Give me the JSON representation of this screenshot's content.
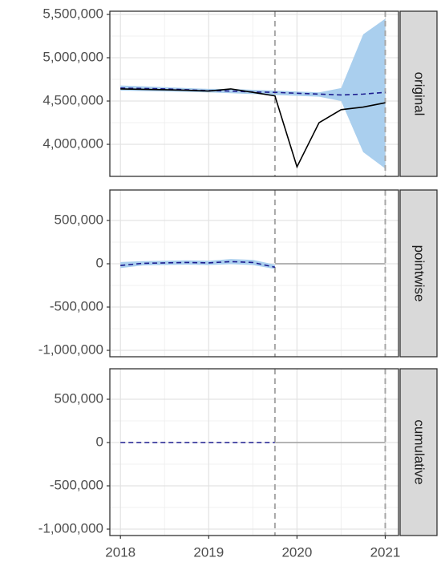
{
  "chart_data": [
    {
      "type": "line",
      "facet_label": "original",
      "x": [
        2018,
        2018.25,
        2018.5,
        2018.75,
        2019,
        2019.25,
        2019.5,
        2019.75,
        2020,
        2020.25,
        2020.5,
        2020.75,
        2021
      ],
      "xlim": [
        2017.88,
        2021.15
      ],
      "xticks": [
        2018,
        2019,
        2020,
        2021
      ],
      "ylim": [
        3630000,
        5537000
      ],
      "yticks": [
        {
          "value": 4000000,
          "label": "4,000,000"
        },
        {
          "value": 4500000,
          "label": "4,500,000"
        },
        {
          "value": 5000000,
          "label": "5,000,000"
        },
        {
          "value": 5500000,
          "label": "5,500,000"
        }
      ],
      "grid": true,
      "vlines": [
        2019.75,
        2021
      ],
      "band": {
        "color": "#aacfee",
        "upper": [
          4680000,
          4670000,
          4660000,
          4650000,
          4640000,
          4640000,
          4630000,
          4620000,
          4610000,
          4600000,
          4650000,
          5270000,
          5450000
        ],
        "lower": [
          4620000,
          4615000,
          4610000,
          4605000,
          4600000,
          4590000,
          4580000,
          4570000,
          4560000,
          4550000,
          4500000,
          3910000,
          3720000
        ]
      },
      "series": [
        {
          "color": "#1c1c8f",
          "dashed": true,
          "values": [
            4650000,
            4645000,
            4640000,
            4630000,
            4620000,
            4615000,
            4605000,
            4600000,
            4590000,
            4580000,
            4570000,
            4580000,
            4600000
          ]
        },
        {
          "color": "#000000",
          "dashed": false,
          "values": [
            4640000,
            4635000,
            4630000,
            4625000,
            4615000,
            4640000,
            4600000,
            4560000,
            3740000,
            4250000,
            4400000,
            4430000,
            4480000
          ]
        }
      ]
    },
    {
      "type": "line",
      "facet_label": "pointwise",
      "x": [
        2018,
        2018.25,
        2018.5,
        2018.75,
        2019,
        2019.25,
        2019.5,
        2019.75,
        2020,
        2020.25,
        2020.5,
        2020.75,
        2021
      ],
      "xlim": [
        2017.88,
        2021.15
      ],
      "xticks": [
        2018,
        2019,
        2020,
        2021
      ],
      "ylim": [
        -1074000,
        852000
      ],
      "yticks": [
        {
          "value": -1000000,
          "label": "-1,000,000"
        },
        {
          "value": -500000,
          "label": "-500,000"
        },
        0,
        {
          "value": 500000,
          "label": "500,000"
        }
      ],
      "grid": true,
      "vlines": [
        2019.75,
        2021
      ],
      "band": {
        "color": "#aacfee",
        "upper": [
          20000,
          30000,
          35000,
          40000,
          35000,
          55000,
          45000,
          -10000,
          null,
          null,
          null,
          null,
          null
        ],
        "lower": [
          -50000,
          -20000,
          -15000,
          -10000,
          -15000,
          -5000,
          -15000,
          -60000,
          null,
          null,
          null,
          null,
          null
        ]
      },
      "series": [
        {
          "color": "#1c1c8f",
          "dashed": true,
          "values": [
            -20000,
            5000,
            10000,
            15000,
            10000,
            25000,
            15000,
            -40000,
            null,
            null,
            null,
            null,
            null
          ]
        },
        {
          "color": "#9e9e9e",
          "dashed": false,
          "values": [
            null,
            null,
            null,
            null,
            null,
            null,
            null,
            0,
            0,
            0,
            0,
            0,
            0
          ]
        }
      ]
    },
    {
      "type": "line",
      "facet_label": "cumulative",
      "x": [
        2018,
        2018.25,
        2018.5,
        2018.75,
        2019,
        2019.25,
        2019.5,
        2019.75,
        2020,
        2020.25,
        2020.5,
        2020.75,
        2021
      ],
      "xlim": [
        2017.88,
        2021.15
      ],
      "xticks": [
        2018,
        2019,
        2020,
        2021
      ],
      "ylim": [
        -1074000,
        852000
      ],
      "yticks": [
        {
          "value": -1000000,
          "label": "-1,000,000"
        },
        {
          "value": -500000,
          "label": "-500,000"
        },
        0,
        {
          "value": 500000,
          "label": "500,000"
        }
      ],
      "grid": true,
      "vlines": [
        2019.75,
        2021
      ],
      "series": [
        {
          "color": "#1c1c8f",
          "dashed": true,
          "values": [
            0,
            0,
            0,
            0,
            0,
            0,
            0,
            0,
            null,
            null,
            null,
            null,
            null
          ]
        },
        {
          "color": "#9e9e9e",
          "dashed": false,
          "values": [
            null,
            null,
            null,
            null,
            null,
            null,
            null,
            0,
            0,
            0,
            0,
            0,
            0
          ]
        }
      ]
    }
  ]
}
